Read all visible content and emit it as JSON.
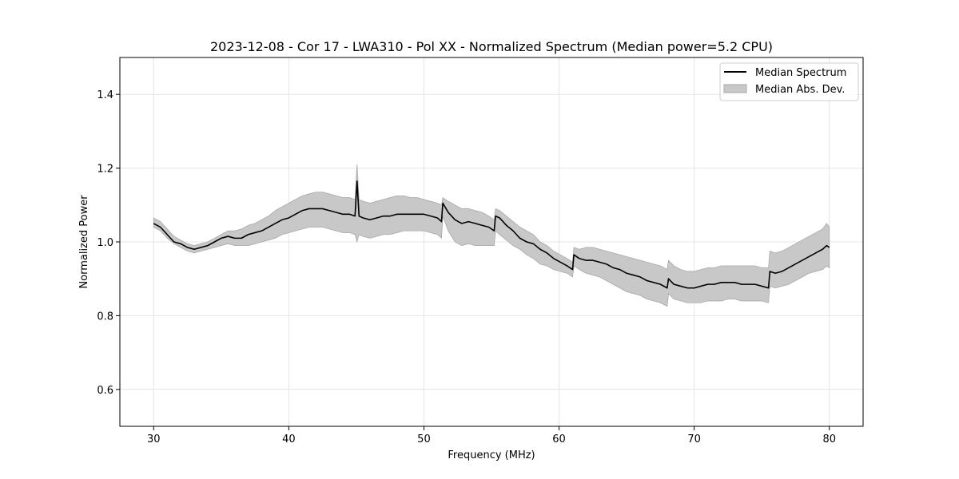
{
  "chart_data": {
    "type": "line",
    "title": "2023-12-08 - Cor 17 - LWA310 - Pol XX - Normalized Spectrum (Median power=5.2 CPU)",
    "xlabel": "Frequency (MHz)",
    "ylabel": "Normalized Power",
    "xlim": [
      27.5,
      82.5
    ],
    "ylim": [
      0.5,
      1.5
    ],
    "xticks": [
      30,
      40,
      50,
      60,
      70,
      80
    ],
    "yticks": [
      0.6,
      0.8,
      1.0,
      1.2,
      1.4
    ],
    "xtick_labels": [
      "30",
      "40",
      "50",
      "60",
      "70",
      "80"
    ],
    "ytick_labels": [
      "0.6",
      "0.8",
      "1.0",
      "1.2",
      "1.4"
    ],
    "grid": true,
    "legend_position": "top-right",
    "legend": [
      "Median Spectrum",
      "Median Abs. Dev."
    ],
    "series": [
      {
        "name": "Median Spectrum",
        "kind": "line",
        "color": "#000000",
        "x": [
          30.0,
          30.5,
          31.0,
          31.5,
          32.0,
          32.5,
          33.0,
          33.5,
          34.0,
          34.5,
          35.0,
          35.5,
          36.0,
          36.5,
          37.0,
          37.5,
          38.0,
          38.5,
          39.0,
          39.5,
          40.0,
          40.5,
          41.0,
          41.5,
          42.0,
          42.5,
          43.0,
          43.5,
          44.0,
          44.5,
          44.9,
          45.05,
          45.2,
          45.5,
          46.0,
          46.5,
          47.0,
          47.5,
          48.0,
          48.5,
          49.0,
          49.5,
          50.0,
          50.5,
          51.0,
          51.3,
          51.4,
          51.8,
          52.3,
          52.8,
          53.3,
          53.8,
          54.3,
          54.8,
          55.2,
          55.3,
          55.6,
          56.1,
          56.6,
          57.1,
          57.6,
          58.1,
          58.6,
          59.1,
          59.6,
          60.1,
          60.6,
          61.0,
          61.1,
          61.5,
          62.0,
          62.5,
          63.0,
          63.5,
          64.0,
          64.5,
          65.0,
          65.5,
          66.0,
          66.5,
          67.0,
          67.5,
          68.0,
          68.1,
          68.5,
          69.0,
          69.5,
          70.0,
          70.5,
          71.0,
          71.5,
          72.0,
          72.5,
          73.0,
          73.5,
          74.0,
          74.5,
          75.0,
          75.5,
          75.6,
          76.0,
          76.5,
          77.0,
          77.5,
          78.0,
          78.5,
          79.0,
          79.5,
          79.8,
          80.0
        ],
        "y": [
          1.05,
          1.04,
          1.02,
          1.0,
          0.995,
          0.985,
          0.98,
          0.985,
          0.99,
          1.0,
          1.01,
          1.015,
          1.01,
          1.01,
          1.02,
          1.025,
          1.03,
          1.04,
          1.05,
          1.06,
          1.065,
          1.075,
          1.085,
          1.09,
          1.09,
          1.09,
          1.085,
          1.08,
          1.075,
          1.075,
          1.07,
          1.165,
          1.07,
          1.065,
          1.06,
          1.065,
          1.07,
          1.07,
          1.075,
          1.075,
          1.075,
          1.075,
          1.075,
          1.07,
          1.065,
          1.055,
          1.105,
          1.08,
          1.06,
          1.05,
          1.055,
          1.05,
          1.045,
          1.04,
          1.03,
          1.07,
          1.065,
          1.045,
          1.03,
          1.01,
          1.0,
          0.995,
          0.98,
          0.97,
          0.955,
          0.945,
          0.935,
          0.925,
          0.965,
          0.955,
          0.95,
          0.95,
          0.945,
          0.94,
          0.93,
          0.925,
          0.915,
          0.91,
          0.905,
          0.895,
          0.89,
          0.885,
          0.875,
          0.9,
          0.885,
          0.88,
          0.875,
          0.875,
          0.88,
          0.885,
          0.885,
          0.89,
          0.89,
          0.89,
          0.885,
          0.885,
          0.885,
          0.88,
          0.875,
          0.92,
          0.915,
          0.92,
          0.93,
          0.94,
          0.95,
          0.96,
          0.97,
          0.98,
          0.99,
          0.985
        ]
      },
      {
        "name": "Median Abs. Dev.",
        "kind": "band",
        "color": "#c8c8c8",
        "lower": [
          1.04,
          1.03,
          1.01,
          0.995,
          0.985,
          0.975,
          0.97,
          0.975,
          0.98,
          0.985,
          0.99,
          0.995,
          0.99,
          0.99,
          0.99,
          0.995,
          1.0,
          1.005,
          1.01,
          1.02,
          1.025,
          1.03,
          1.035,
          1.04,
          1.04,
          1.04,
          1.035,
          1.03,
          1.025,
          1.025,
          1.02,
          1.0,
          1.02,
          1.015,
          1.01,
          1.015,
          1.02,
          1.02,
          1.025,
          1.03,
          1.03,
          1.03,
          1.03,
          1.025,
          1.02,
          1.01,
          1.07,
          1.03,
          1.0,
          0.99,
          0.995,
          0.99,
          0.99,
          0.99,
          0.99,
          1.03,
          1.02,
          1.005,
          0.99,
          0.98,
          0.965,
          0.955,
          0.94,
          0.935,
          0.925,
          0.92,
          0.915,
          0.905,
          0.935,
          0.925,
          0.915,
          0.91,
          0.905,
          0.895,
          0.885,
          0.875,
          0.865,
          0.86,
          0.855,
          0.845,
          0.84,
          0.835,
          0.825,
          0.86,
          0.845,
          0.84,
          0.835,
          0.835,
          0.835,
          0.84,
          0.84,
          0.84,
          0.845,
          0.845,
          0.84,
          0.84,
          0.84,
          0.84,
          0.835,
          0.88,
          0.875,
          0.88,
          0.885,
          0.895,
          0.905,
          0.915,
          0.92,
          0.925,
          0.935,
          0.93
        ],
        "upper": [
          1.065,
          1.055,
          1.035,
          1.015,
          1.005,
          0.995,
          0.99,
          0.995,
          1.0,
          1.01,
          1.02,
          1.03,
          1.03,
          1.035,
          1.045,
          1.05,
          1.06,
          1.07,
          1.085,
          1.095,
          1.105,
          1.115,
          1.125,
          1.13,
          1.135,
          1.135,
          1.13,
          1.125,
          1.12,
          1.12,
          1.115,
          1.21,
          1.115,
          1.11,
          1.105,
          1.11,
          1.115,
          1.12,
          1.125,
          1.125,
          1.12,
          1.12,
          1.115,
          1.11,
          1.105,
          1.1,
          1.12,
          1.11,
          1.1,
          1.09,
          1.09,
          1.085,
          1.08,
          1.07,
          1.06,
          1.09,
          1.085,
          1.07,
          1.055,
          1.04,
          1.03,
          1.02,
          1.0,
          0.99,
          0.975,
          0.965,
          0.955,
          0.945,
          0.985,
          0.98,
          0.985,
          0.985,
          0.98,
          0.975,
          0.97,
          0.965,
          0.96,
          0.955,
          0.95,
          0.945,
          0.94,
          0.935,
          0.925,
          0.95,
          0.935,
          0.925,
          0.92,
          0.92,
          0.925,
          0.93,
          0.93,
          0.935,
          0.935,
          0.935,
          0.935,
          0.935,
          0.935,
          0.93,
          0.93,
          0.975,
          0.97,
          0.975,
          0.985,
          0.995,
          1.005,
          1.015,
          1.025,
          1.035,
          1.05,
          1.04
        ]
      }
    ]
  }
}
